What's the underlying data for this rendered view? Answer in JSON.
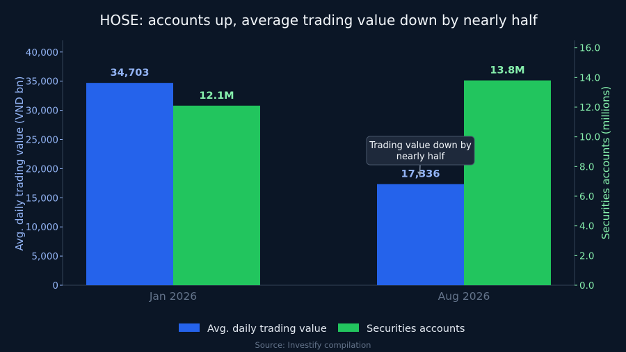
{
  "chart_data": {
    "type": "bar",
    "title": "HOSE: accounts up, average trading value down by nearly half",
    "categories": [
      "Jan 2026",
      "Aug 2026"
    ],
    "series": [
      {
        "name": "Avg. daily trading value",
        "axis": "left",
        "values": [
          34703,
          17336
        ],
        "value_labels": [
          "34,703",
          "17,336"
        ],
        "color": "#2563eb"
      },
      {
        "name": "Securities accounts",
        "axis": "right",
        "values": [
          12.1,
          13.8
        ],
        "value_labels": [
          "12.1M",
          "13.8M"
        ],
        "color": "#22c55e"
      }
    ],
    "y_left": {
      "label": "Avg. daily trading value (VND bn)",
      "ylim": [
        0,
        42000
      ],
      "ticks": [
        0,
        5000,
        10000,
        15000,
        20000,
        25000,
        30000,
        35000,
        40000
      ],
      "tick_labels": [
        "0",
        "5,000",
        "10,000",
        "15,000",
        "20,000",
        "25,000",
        "30,000",
        "35,000",
        "40,000"
      ],
      "color": "#93b4f5"
    },
    "y_right": {
      "label": "Securities accounts (millions)",
      "ylim": [
        0,
        16.5
      ],
      "ticks": [
        0,
        2,
        4,
        6,
        8,
        10,
        12,
        14,
        16
      ],
      "tick_labels": [
        "0.0",
        "2.0",
        "4.0",
        "6.0",
        "8.0",
        "10.0",
        "12.0",
        "14.0",
        "16.0"
      ],
      "color": "#86efac"
    },
    "annotation": {
      "text_lines": [
        "Trading value down by",
        "nearly half"
      ],
      "target_category": "Aug 2026",
      "target_series": "Avg. daily trading value"
    },
    "grid": false,
    "legend": "bottom-center"
  },
  "source": "Source: Investify compilation",
  "colors": {
    "background": "#0b1626",
    "title": "#f1f5f9",
    "category_label": "#64748b",
    "legend_text": "#e2e8f0",
    "source_text": "#64748b",
    "axis_line": "#334155"
  }
}
